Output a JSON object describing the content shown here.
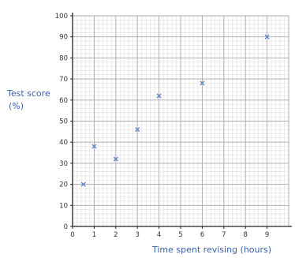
{
  "chart_data": {
    "type": "scatter",
    "title": "",
    "xlabel": "Time spent revising (hours)",
    "ylabel_line1": "Test score",
    "ylabel_line2": "(%)",
    "xlim": [
      0,
      10
    ],
    "ylim": [
      0,
      100
    ],
    "x_ticks": [
      0,
      1,
      2,
      3,
      4,
      5,
      6,
      7,
      8,
      9
    ],
    "y_ticks": [
      0,
      10,
      20,
      30,
      40,
      50,
      60,
      70,
      80,
      90,
      100
    ],
    "grid": true,
    "marker": "x",
    "colors": {
      "marker": "#5b7fc4",
      "label": "#3a5fa8",
      "axis": "#222222",
      "grid_major": "#aaaaaa",
      "grid_minor": "#dedede"
    },
    "points": [
      {
        "x": 0.5,
        "y": 20
      },
      {
        "x": 1,
        "y": 38
      },
      {
        "x": 2,
        "y": 32
      },
      {
        "x": 3,
        "y": 46
      },
      {
        "x": 4,
        "y": 62
      },
      {
        "x": 6,
        "y": 68
      },
      {
        "x": 9,
        "y": 90
      }
    ]
  }
}
